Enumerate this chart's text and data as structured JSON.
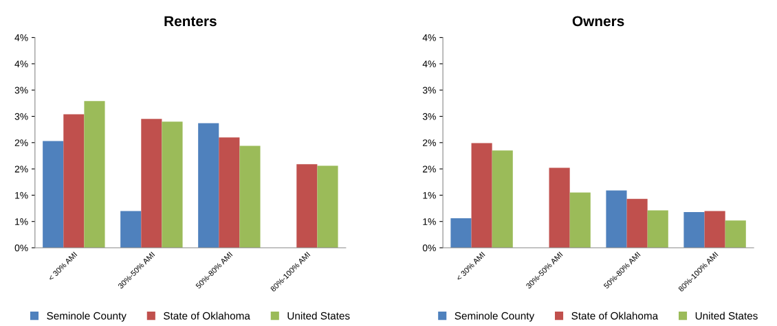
{
  "chart_data": [
    {
      "type": "bar",
      "title": "Renters",
      "categories": [
        "< 30% AMI",
        "30%-50% AMI",
        "50%-80% AMI",
        "80%-100% AMI"
      ],
      "series": [
        {
          "name": "Seminole County",
          "color": "#4f81bd",
          "values": [
            2.03,
            0.7,
            2.37,
            null
          ]
        },
        {
          "name": "State of Oklahoma",
          "color": "#c0504d",
          "values": [
            2.54,
            2.45,
            2.1,
            1.59
          ]
        },
        {
          "name": "United States",
          "color": "#9bbb59",
          "values": [
            2.79,
            2.4,
            1.94,
            1.56
          ]
        }
      ],
      "ylim": [
        0,
        4
      ],
      "yticks": [
        {
          "value": 0,
          "label": "0%"
        },
        {
          "value": 0.5,
          "label": "1%"
        },
        {
          "value": 1,
          "label": "1%"
        },
        {
          "value": 1.5,
          "label": "2%"
        },
        {
          "value": 2,
          "label": "2%"
        },
        {
          "value": 2.5,
          "label": "3%"
        },
        {
          "value": 3,
          "label": "3%"
        },
        {
          "value": 3.5,
          "label": "4%"
        },
        {
          "value": 4,
          "label": "4%"
        }
      ],
      "grid": false,
      "legend": "bottom"
    },
    {
      "type": "bar",
      "title": "Owners",
      "categories": [
        "< 30% AMI",
        "30%-50% AMI",
        "50%-80% AMI",
        "80%-100% AMI"
      ],
      "series": [
        {
          "name": "Seminole County",
          "color": "#4f81bd",
          "values": [
            0.56,
            null,
            1.09,
            0.68
          ]
        },
        {
          "name": "State of Oklahoma",
          "color": "#c0504d",
          "values": [
            1.99,
            1.52,
            0.93,
            0.7
          ]
        },
        {
          "name": "United States",
          "color": "#9bbb59",
          "values": [
            1.85,
            1.05,
            0.71,
            0.52
          ]
        }
      ],
      "ylim": [
        0,
        4
      ],
      "yticks": [
        {
          "value": 0,
          "label": "0%"
        },
        {
          "value": 0.5,
          "label": "1%"
        },
        {
          "value": 1,
          "label": "1%"
        },
        {
          "value": 1.5,
          "label": "2%"
        },
        {
          "value": 2,
          "label": "2%"
        },
        {
          "value": 2.5,
          "label": "3%"
        },
        {
          "value": 3,
          "label": "3%"
        },
        {
          "value": 3.5,
          "label": "4%"
        },
        {
          "value": 4,
          "label": "4%"
        }
      ],
      "grid": false,
      "legend": "bottom"
    }
  ]
}
